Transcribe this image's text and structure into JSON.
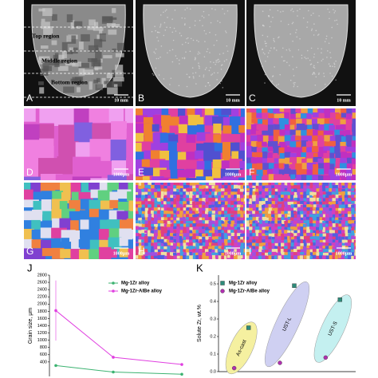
{
  "panels": [
    {
      "label": "A",
      "scale": "10 mm",
      "regions": [
        "Top region",
        "Middle region",
        "Bottom region"
      ]
    },
    {
      "label": "B",
      "scale": "10 mm"
    },
    {
      "label": "C",
      "scale": "10 mm"
    },
    {
      "label": "D",
      "scale": "1000μm"
    },
    {
      "label": "E",
      "scale": "1000μm"
    },
    {
      "label": "F",
      "scale": "1000μm"
    },
    {
      "label": "G",
      "scale": "1000μm"
    },
    {
      "label": "H",
      "scale": "1000μm"
    },
    {
      "label": "I",
      "scale": "1000μm"
    }
  ],
  "chart_data": [
    {
      "type": "line",
      "panel": "J",
      "ylabel": "Grain size, μm",
      "categories": [
        null,
        null,
        null
      ],
      "ylim": [
        0,
        2800
      ],
      "yticks": [
        400,
        600,
        800,
        1000,
        1200,
        1400,
        1600,
        1800,
        2000,
        2200,
        2400,
        2600,
        2800
      ],
      "series": [
        {
          "name": "Mg-1Zr alloy",
          "color": "#3cb371",
          "values": [
            300,
            120,
            60
          ]
        },
        {
          "name": "Mg-1Zr-AlBe alloy",
          "color": "#e040e0",
          "values": [
            1820,
            530,
            330
          ],
          "errors": [
            830,
            null,
            null
          ]
        }
      ]
    },
    {
      "type": "scatter",
      "panel": "K",
      "ylabel": "Solute Zr, wt.%",
      "categories": [
        "As-cast",
        "UST-L",
        "UST-S"
      ],
      "group_colors": [
        "#f5f0a0",
        "#cfd0f2",
        "#c4f0f0"
      ],
      "ylim": [
        0,
        0.55
      ],
      "yticks": [
        {
          "value": 0,
          "label": "0.0"
        },
        0.1,
        0.2,
        0.3,
        0.4,
        0.5
      ],
      "series": [
        {
          "name": "Mg-1Zr alloy",
          "color": "#2e8b7a",
          "marker": "square",
          "values": [
            0.25,
            0.49,
            0.41
          ]
        },
        {
          "name": "Mg-1Zr-AlBe alloy",
          "color": "#b030b0",
          "marker": "circle",
          "values": [
            0.02,
            0.05,
            0.08
          ]
        }
      ]
    }
  ]
}
